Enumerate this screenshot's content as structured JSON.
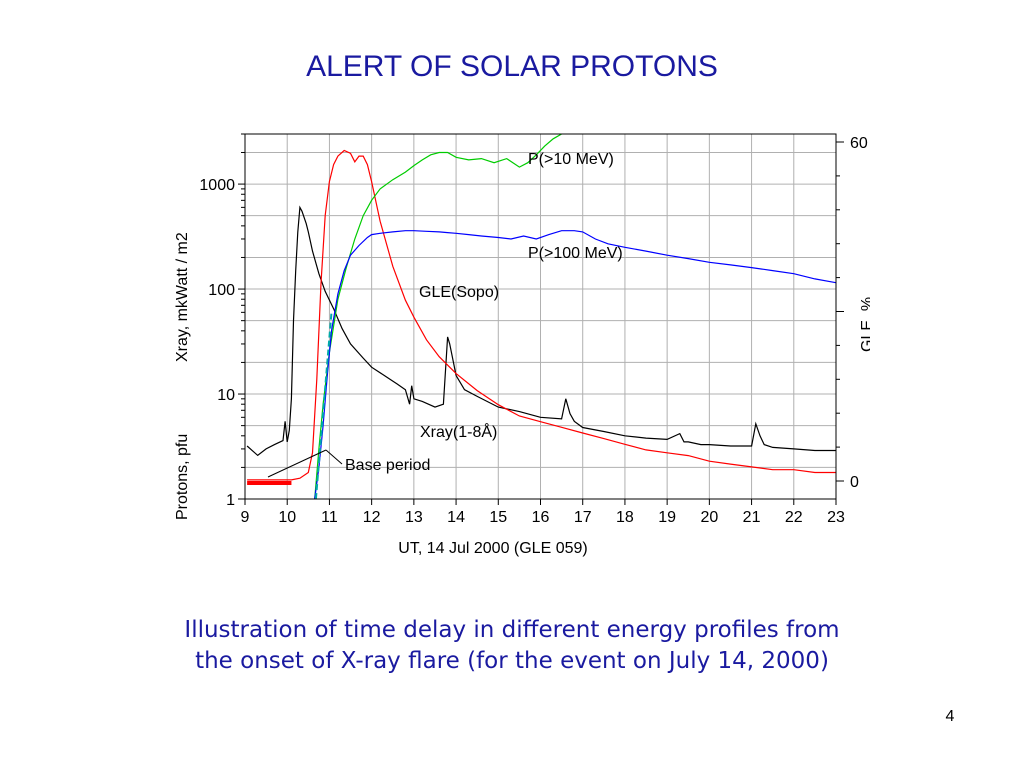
{
  "slide": {
    "title": "ALERT OF SOLAR PROTONS",
    "caption_line1": "Illustration of time delay in different energy profiles from",
    "caption_line2": "the onset of X-ray flare (for the event on July 14, 2000)",
    "slide_number": "4"
  },
  "chart_data": {
    "type": "line",
    "title": "",
    "xlabel": "UT, 14 Jul 2000  (GLE 059)",
    "ylabel_left_top": "Xray, mkWatt / m2",
    "ylabel_left_bottom": "Protons,  pfu",
    "ylabel_right": "GLE, %",
    "x_range": [
      9,
      23
    ],
    "x_ticks": [
      "9",
      "10",
      "11",
      "12",
      "13",
      "14",
      "15",
      "16",
      "17",
      "18",
      "19",
      "20",
      "21",
      "22",
      "23"
    ],
    "y_left_scale": "log",
    "y_left_range": [
      1,
      3000
    ],
    "y_left_ticks": [
      "1",
      "10",
      "100",
      "1000"
    ],
    "y_right_range": [
      0,
      60
    ],
    "y_right_ticks": [
      "0",
      "60"
    ],
    "grid": true,
    "colors": {
      "xray": "#000000",
      "gle": "#ff0000",
      "p10": "#00cc00",
      "p100": "#0000ff",
      "onset": "#00aaaa",
      "base_period": "#ff0000",
      "axes": "#000000",
      "grid": "#b0b0b0"
    },
    "annotations": {
      "p10": "P(>10 MeV)",
      "p100": "P(>100 MeV)",
      "gle": "GLE(Sopo)",
      "xray": "Xray(1-8Å)",
      "base_period": "Base period"
    },
    "base_period_x": [
      9.05,
      10.1
    ],
    "series": [
      {
        "name": "Xray(1-8Å)",
        "axis": "left",
        "key": "xray",
        "x": [
          9.05,
          9.3,
          9.5,
          9.7,
          9.9,
          9.95,
          10.0,
          10.05,
          10.1,
          10.15,
          10.2,
          10.25,
          10.3,
          10.35,
          10.45,
          10.5,
          10.6,
          10.75,
          10.9,
          11.1,
          11.3,
          11.5,
          11.8,
          12.0,
          12.3,
          12.6,
          12.8,
          12.9,
          12.95,
          13.0,
          13.2,
          13.5,
          13.7,
          13.8,
          13.85,
          14.0,
          14.2,
          14.5,
          15.0,
          15.5,
          16.0,
          16.5,
          16.6,
          16.7,
          16.8,
          17.0,
          17.5,
          18.0,
          18.5,
          19.0,
          19.3,
          19.4,
          19.5,
          19.8,
          20.0,
          20.5,
          21.0,
          21.1,
          21.2,
          21.3,
          21.5,
          22.0,
          22.5,
          23.0
        ],
        "y": [
          3.2,
          2.6,
          3.0,
          3.3,
          3.6,
          5.5,
          3.5,
          4.5,
          9,
          50,
          150,
          350,
          600,
          550,
          420,
          350,
          230,
          140,
          95,
          65,
          42,
          30,
          22,
          18,
          15,
          12.5,
          11,
          8,
          12,
          9,
          8.5,
          7.5,
          8,
          35,
          30,
          15,
          11,
          9.5,
          7.5,
          6.8,
          6,
          5.8,
          9,
          6.5,
          5.5,
          4.8,
          4.4,
          4,
          3.8,
          3.7,
          4.2,
          3.5,
          3.5,
          3.3,
          3.3,
          3.2,
          3.2,
          5.2,
          4,
          3.3,
          3.1,
          3.0,
          2.9,
          2.9
        ]
      },
      {
        "name": "GLE(Sopo)",
        "axis": "right",
        "key": "gle",
        "x": [
          9.05,
          10.1,
          10.3,
          10.5,
          10.6,
          10.7,
          10.8,
          10.9,
          11.0,
          11.1,
          11.2,
          11.35,
          11.5,
          11.6,
          11.7,
          11.8,
          11.9,
          12.0,
          12.2,
          12.5,
          12.8,
          13.0,
          13.3,
          13.6,
          14.0,
          14.5,
          15.0,
          15.5,
          16.0,
          16.5,
          17.0,
          17.5,
          18.0,
          18.5,
          19.0,
          19.5,
          20.0,
          20.5,
          21.0,
          21.5,
          22.0,
          22.5,
          23.0
        ],
        "y": [
          0.2,
          0.2,
          0.5,
          1.5,
          5,
          18,
          35,
          47,
          53,
          56,
          57.5,
          58.5,
          58,
          56.5,
          57.5,
          57.5,
          56,
          53,
          46,
          38,
          32,
          29,
          25,
          22,
          19,
          16,
          13.5,
          11.5,
          10.5,
          9.5,
          8.5,
          7.5,
          6.5,
          5.5,
          5.0,
          4.5,
          3.5,
          3.0,
          2.5,
          2.0,
          2.0,
          1.5,
          1.5
        ]
      },
      {
        "name": "P(>10 MeV)",
        "axis": "left",
        "key": "p10",
        "x": [
          10.65,
          10.75,
          10.85,
          11.0,
          11.2,
          11.4,
          11.6,
          11.8,
          12.0,
          12.2,
          12.5,
          12.8,
          13.0,
          13.2,
          13.4,
          13.6,
          13.8,
          14.0,
          14.3,
          14.6,
          14.9,
          15.2,
          15.5,
          15.7,
          15.9,
          16.1,
          16.3,
          16.5
        ],
        "y": [
          1,
          3,
          8,
          25,
          80,
          160,
          300,
          500,
          700,
          900,
          1100,
          1300,
          1500,
          1700,
          1900,
          2000,
          2000,
          1800,
          1700,
          1750,
          1600,
          1750,
          1450,
          1600,
          1900,
          2300,
          2700,
          3000
        ]
      },
      {
        "name": "P(>100 MeV)",
        "axis": "left",
        "key": "p100",
        "x": [
          10.65,
          10.75,
          10.85,
          10.95,
          11.05,
          11.2,
          11.35,
          11.5,
          11.7,
          11.9,
          12.0,
          12.2,
          12.5,
          12.8,
          13.0,
          13.3,
          13.6,
          13.8,
          14.0,
          14.3,
          14.6,
          15.0,
          15.3,
          15.6,
          15.9,
          16.2,
          16.5,
          16.8,
          17.0,
          17.3,
          17.6,
          18.0,
          18.5,
          19.0,
          19.5,
          20.0,
          20.5,
          21.0,
          21.5,
          22.0,
          22.5,
          23.0
        ],
        "y": [
          1,
          2,
          5,
          15,
          40,
          90,
          150,
          210,
          260,
          310,
          330,
          340,
          350,
          360,
          360,
          355,
          350,
          345,
          340,
          330,
          320,
          310,
          300,
          320,
          300,
          330,
          360,
          360,
          350,
          300,
          270,
          250,
          230,
          210,
          195,
          180,
          170,
          160,
          150,
          140,
          125,
          115
        ]
      },
      {
        "name": "",
        "axis": "left",
        "key": "onset",
        "x": [
          10.68,
          11.05
        ],
        "y": [
          1,
          60
        ]
      }
    ]
  }
}
